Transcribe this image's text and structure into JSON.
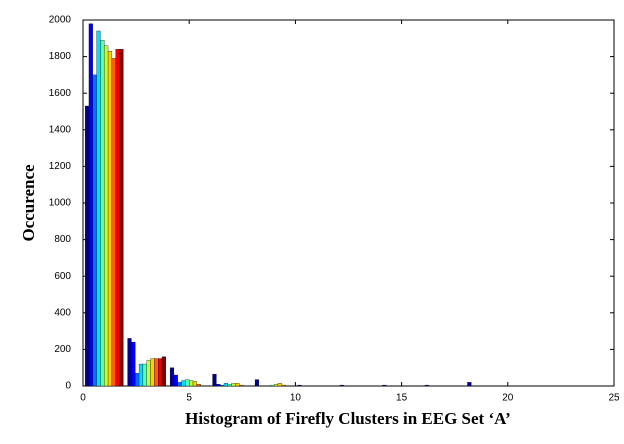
{
  "chart_data": {
    "type": "bar",
    "xlabel": "Histogram of Firefly Clusters in EEG Set ‘A’",
    "ylabel": "Occurence",
    "x": [
      1,
      3,
      5,
      7,
      9,
      11,
      13,
      15,
      17,
      19
    ],
    "series": [
      {
        "color": "#00008f",
        "values": [
          1530,
          260,
          100,
          65,
          35,
          5,
          5,
          5,
          5,
          20
        ]
      },
      {
        "color": "#0000ff",
        "values": [
          1980,
          240,
          60,
          10,
          0,
          0,
          0,
          0,
          0,
          0
        ]
      },
      {
        "color": "#0070ff",
        "values": [
          1700,
          70,
          20,
          5,
          0,
          0,
          0,
          0,
          0,
          0
        ]
      },
      {
        "color": "#00dfff",
        "values": [
          1940,
          120,
          30,
          15,
          0,
          0,
          0,
          0,
          0,
          0
        ]
      },
      {
        "color": "#50ffaf",
        "values": [
          1890,
          120,
          35,
          10,
          5,
          0,
          0,
          0,
          0,
          0
        ]
      },
      {
        "color": "#c0ff40",
        "values": [
          1860,
          140,
          30,
          15,
          10,
          0,
          0,
          0,
          0,
          0
        ]
      },
      {
        "color": "#ffcf00",
        "values": [
          1830,
          150,
          25,
          15,
          15,
          0,
          0,
          0,
          0,
          0
        ]
      },
      {
        "color": "#ff6000",
        "values": [
          1790,
          150,
          10,
          5,
          5,
          0,
          0,
          0,
          0,
          0
        ]
      },
      {
        "color": "#ef0000",
        "values": [
          1840,
          150,
          0,
          0,
          0,
          0,
          0,
          0,
          0,
          0
        ]
      },
      {
        "color": "#800000",
        "values": [
          1840,
          160,
          0,
          0,
          0,
          0,
          0,
          0,
          0,
          0
        ]
      }
    ],
    "xlim": [
      0,
      25
    ],
    "xticks": [
      0,
      5,
      10,
      15,
      20,
      25
    ],
    "ylim": [
      0,
      2000
    ],
    "yticks": [
      0,
      200,
      400,
      600,
      800,
      1000,
      1200,
      1400,
      1600,
      1800,
      2000
    ]
  }
}
